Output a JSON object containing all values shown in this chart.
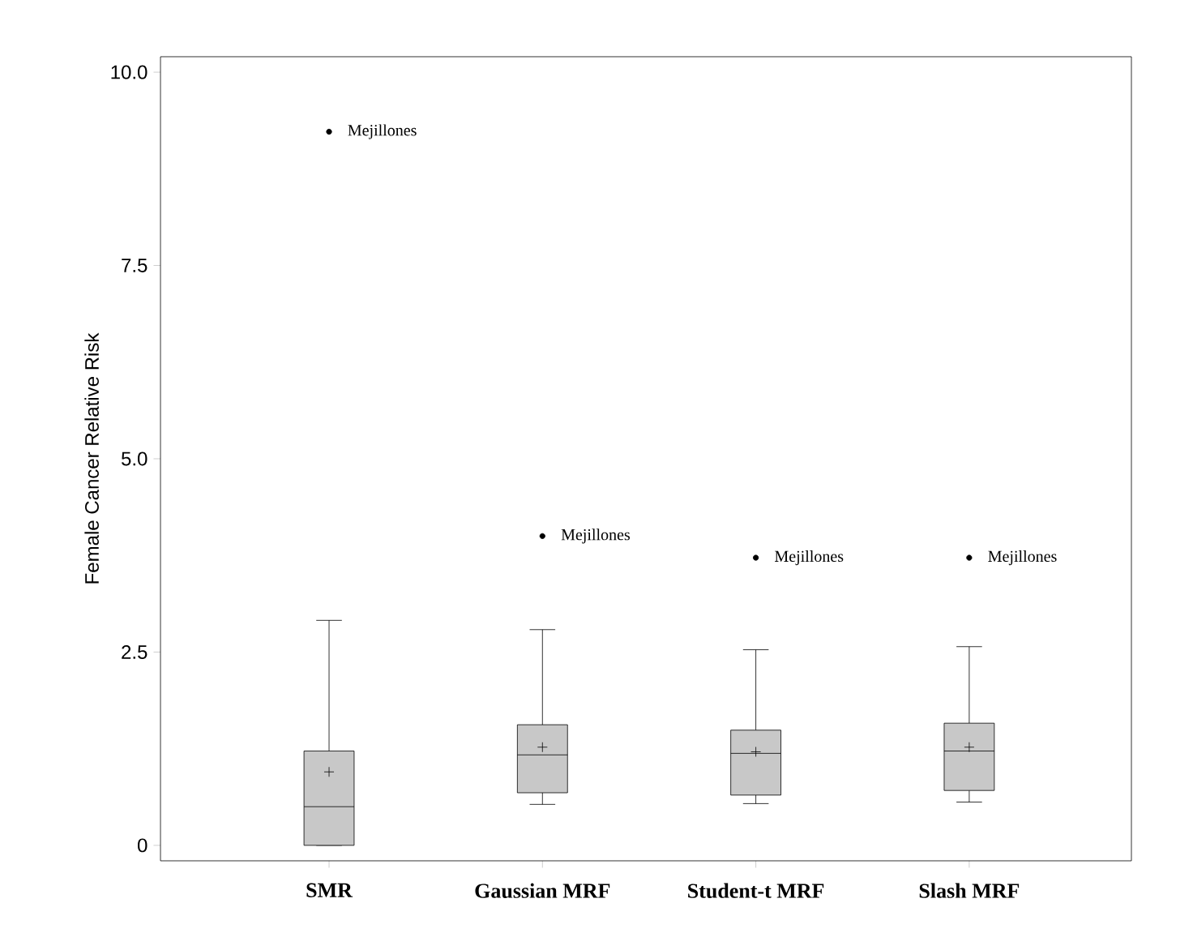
{
  "chart_data": {
    "type": "box",
    "ylabel": "Female Cancer Relative Risk",
    "categories": [
      "SMR",
      "Gaussian MRF",
      "Student-t MRF",
      "Slash MRF"
    ],
    "boxes": [
      {
        "low": 0,
        "q1": 0,
        "median": 0.5,
        "q3": 1.22,
        "high": 2.91,
        "mean": 0.95,
        "outliers": [
          9.23
        ]
      },
      {
        "low": 0.53,
        "q1": 0.68,
        "median": 1.17,
        "q3": 1.56,
        "high": 2.79,
        "mean": 1.27,
        "outliers": [
          4.0
        ]
      },
      {
        "low": 0.54,
        "q1": 0.65,
        "median": 1.19,
        "q3": 1.49,
        "high": 2.53,
        "mean": 1.21,
        "outliers": [
          3.72
        ]
      },
      {
        "low": 0.56,
        "q1": 0.71,
        "median": 1.22,
        "q3": 1.58,
        "high": 2.57,
        "mean": 1.27,
        "outliers": [
          3.72
        ]
      }
    ],
    "color": "#c8c8c8",
    "ylim": [
      -0.2,
      10.2
    ],
    "yticks": [
      {
        "value": 0,
        "label": "0"
      },
      {
        "value": 2.5,
        "label": "2.5"
      },
      {
        "value": 5,
        "label": "5.0"
      },
      {
        "value": 7.5,
        "label": "7.5"
      },
      {
        "value": 10,
        "label": "10.0"
      }
    ],
    "annotations": [
      "Mejillones",
      "Mejillones",
      "Mejillones",
      "Mejillones"
    ]
  }
}
